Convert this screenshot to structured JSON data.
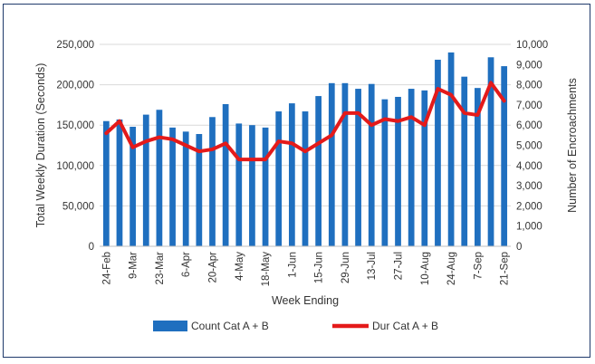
{
  "chart_data": {
    "type": "bar",
    "title": "",
    "xlabel": "Week Ending",
    "ylabel": "Total Weekly Duration (Seconds)",
    "y2label": "Number of Encroachments",
    "ylim": [
      0,
      250000
    ],
    "y2lim": [
      0,
      10000
    ],
    "y_ticks": [
      "0",
      "50,000",
      "100,000",
      "150,000",
      "200,000",
      "250,000"
    ],
    "y2_ticks": [
      "0",
      "1,000",
      "2,000",
      "3,000",
      "4,000",
      "5,000",
      "6,000",
      "7,000",
      "8,000",
      "9,000",
      "10,000"
    ],
    "x_tick_labels": [
      "24-Feb",
      "9-Mar",
      "23-Mar",
      "6-Apr",
      "20-Apr",
      "4-May",
      "18-May",
      "1-Jun",
      "15-Jun",
      "29-Jun",
      "13-Jul",
      "27-Jul",
      "10-Aug",
      "24-Aug",
      "7-Sep",
      "21-Sep"
    ],
    "legend_position": "bottom",
    "series": [
      {
        "name": "Count Cat A + B",
        "type": "bar",
        "axis": "left",
        "color": "#1f6fbf",
        "values": [
          155000,
          157000,
          148000,
          163000,
          169000,
          147000,
          142000,
          139000,
          160000,
          176000,
          152000,
          150000,
          147000,
          167000,
          177000,
          167000,
          186000,
          202000,
          202000,
          195000,
          201000,
          182000,
          185000,
          195000,
          193000,
          231000,
          240000,
          210000,
          196000,
          234000,
          223000
        ]
      },
      {
        "name": "Dur Cat A + B",
        "type": "line",
        "axis": "right",
        "color": "#e41a1a",
        "values": [
          5600,
          6200,
          4900,
          5200,
          5400,
          5300,
          5000,
          4700,
          4800,
          5100,
          4300,
          4300,
          4300,
          5200,
          5100,
          4700,
          5100,
          5500,
          6600,
          6600,
          6000,
          6300,
          6200,
          6400,
          6000,
          7800,
          7500,
          6600,
          6500,
          8100,
          7200
        ]
      }
    ]
  }
}
